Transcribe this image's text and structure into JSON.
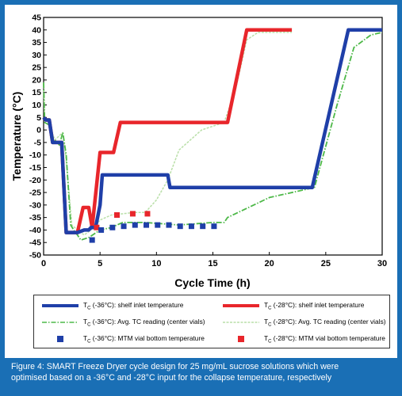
{
  "chart_data": {
    "type": "line",
    "xlabel": "Cycle Time (h)",
    "ylabel": "Temperature (°C)",
    "xlim": [
      0,
      30
    ],
    "ylim": [
      -50,
      45
    ],
    "xticks": [
      "0",
      "5",
      "10",
      "15",
      "20",
      "25",
      "30"
    ],
    "yticks": [
      "45",
      "40",
      "35",
      "30",
      "25",
      "20",
      "15",
      "10",
      "5",
      "0",
      "-5",
      "-10",
      "-15",
      "-20",
      "-25",
      "-30",
      "-35",
      "-40",
      "-45",
      "-50"
    ],
    "series": [
      {
        "name": "TC (-36°C): shelf inlet temperature",
        "legend_main": "T",
        "legend_sub": "C",
        "legend_rest": " (-36°C): shelf inlet temperature",
        "color": "#1f3fa8",
        "style": "thick",
        "x": [
          0,
          0.2,
          0.5,
          0.8,
          1.0,
          1.6,
          2.0,
          3.0,
          3.6,
          4.0,
          4.2,
          4.6,
          5.0,
          5.2,
          6.0,
          8.0,
          10.0,
          11.0,
          11.2,
          15.0,
          20.0,
          23.0,
          23.8,
          27.0,
          30.0
        ],
        "y": [
          5,
          4,
          4,
          -5,
          -5,
          -5,
          -41,
          -41,
          -40,
          -40,
          -39,
          -39,
          -30,
          -18,
          -18,
          -18,
          -18,
          -18,
          -23,
          -23,
          -23,
          -23,
          -23,
          40,
          40
        ]
      },
      {
        "name": "TC (-28°C): shelf inlet temperature",
        "legend_main": "T",
        "legend_sub": "C",
        "legend_rest": " (-28°C): shelf inlet temperature",
        "color": "#e8262b",
        "style": "thick",
        "x": [
          0,
          0.2,
          0.5,
          0.8,
          1.0,
          1.6,
          2.0,
          3.0,
          3.5,
          4.0,
          4.3,
          5.0,
          5.3,
          6.2,
          6.8,
          10.0,
          12.0,
          14.0,
          16.0,
          16.3,
          18.0,
          22.0
        ],
        "y": [
          5,
          4,
          4,
          -5,
          -5,
          -5,
          -41,
          -41,
          -31,
          -31,
          -39,
          -9,
          -9,
          -9,
          3,
          3,
          3,
          3,
          3,
          3,
          40,
          40
        ]
      },
      {
        "name": "TC (-36°C): Avg. TC reading (center vials)",
        "legend_main": "T",
        "legend_sub": "C",
        "legend_rest": " (-36°C): Avg. TC reading (center vials)",
        "color": "#4db848",
        "style": "dashdot",
        "x": [
          0,
          0.1,
          0.5,
          0.8,
          1.0,
          1.4,
          1.7,
          2.0,
          2.4,
          2.8,
          3.0,
          3.3,
          4.0,
          5.0,
          6.0,
          7.0,
          9.0,
          12.0,
          15.0,
          16.0,
          16.3,
          20.0,
          23.0,
          24.0,
          26.0,
          27.5,
          29.0,
          30.0
        ],
        "y": [
          19,
          3,
          2,
          -5,
          -4,
          -6,
          -1,
          -10,
          -38,
          -41,
          -42,
          -44,
          -43,
          -40,
          -39,
          -37,
          -37,
          -38,
          -37,
          -37,
          -35,
          -27,
          -24,
          -23,
          10,
          33,
          38,
          39
        ]
      },
      {
        "name": "TC (-28°C): Avg. TC reading (center vials)",
        "legend_main": "T",
        "legend_sub": "C",
        "legend_rest": " (-28°C): Avg. TC reading (center vials)",
        "color": "#b9dfa8",
        "style": "thin",
        "x": [
          0,
          0.1,
          0.5,
          1.0,
          1.7,
          2.0,
          2.5,
          3.0,
          3.6,
          4.2,
          5.0,
          6.0,
          8.0,
          9.0,
          10.0,
          11.0,
          12.0,
          14.0,
          16.0,
          17.0,
          18.0,
          19.0,
          20.0,
          22.0
        ],
        "y": [
          19,
          3,
          2,
          -4,
          -1,
          -12,
          -38,
          -40,
          -42,
          -40,
          -36,
          -34,
          -33,
          -33,
          -28,
          -20,
          -8,
          0,
          3,
          16,
          36,
          39,
          39,
          39
        ]
      },
      {
        "name": "TC (-36°C): MTM vial bottom temperature",
        "legend_main": "T",
        "legend_sub": "C",
        "legend_rest": " (-36°C): MTM vial bottom temperature",
        "color": "#1f3fa8",
        "style": "square",
        "x": [
          4.3,
          5.1,
          6.1,
          7.1,
          8.1,
          9.1,
          10.1,
          11.1,
          12.1,
          13.1,
          14.1,
          15.1
        ],
        "y": [
          -44,
          -40,
          -39,
          -38.5,
          -38,
          -38,
          -38,
          -38,
          -38.5,
          -38.5,
          -38.5,
          -38.5
        ]
      },
      {
        "name": "TC (-28°C): MTM vial bottom temperature",
        "legend_main": "T",
        "legend_sub": "C",
        "legend_rest": " (-28°C): MTM vial bottom temperature",
        "color": "#e8262b",
        "style": "square",
        "x": [
          4.7,
          6.5,
          7.9,
          9.2
        ],
        "y": [
          -39,
          -34,
          -33.5,
          -33.5
        ]
      }
    ]
  },
  "caption": {
    "line1": "Figure 4: SMART Freeze Dryer cycle design for 25 mg/mL sucrose solutions which were",
    "line2": "optimised based on a -36°C and -28°C input for the collapse temperature, respectively"
  }
}
